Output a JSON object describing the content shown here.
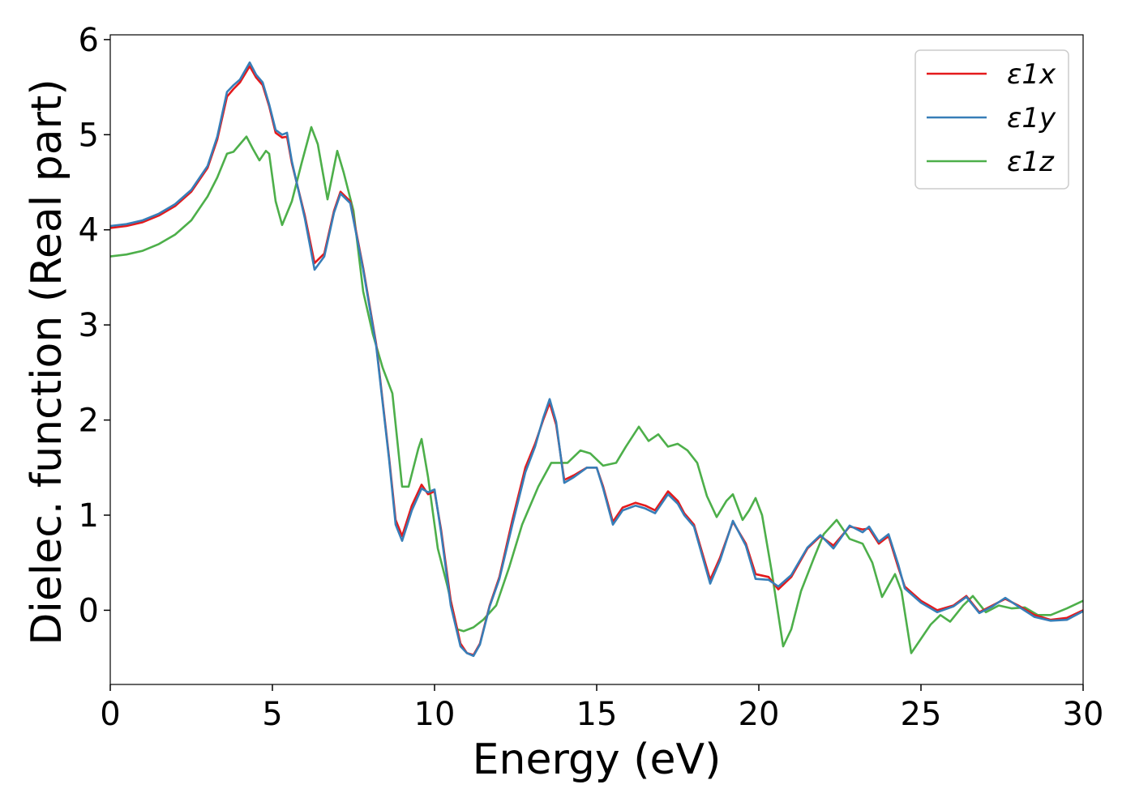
{
  "chart_data": {
    "type": "line",
    "xlabel": "Energy (eV)",
    "ylabel": "Dielec. function (Real part)",
    "xlim": [
      0,
      30
    ],
    "ylim": [
      -0.78,
      6.05
    ],
    "xticks": [
      0,
      5,
      10,
      15,
      20,
      25,
      30
    ],
    "yticks": [
      0,
      1,
      2,
      3,
      4,
      5,
      6
    ],
    "grid": false,
    "legend_position": "top-right",
    "series": [
      {
        "name": "ε1x",
        "color": "#e41a1c",
        "points": [
          [
            0,
            4.02
          ],
          [
            0.5,
            4.04
          ],
          [
            1,
            4.08
          ],
          [
            1.5,
            4.15
          ],
          [
            2,
            4.25
          ],
          [
            2.5,
            4.4
          ],
          [
            3,
            4.65
          ],
          [
            3.3,
            4.95
          ],
          [
            3.6,
            5.4
          ],
          [
            3.8,
            5.48
          ],
          [
            4.0,
            5.55
          ],
          [
            4.3,
            5.72
          ],
          [
            4.5,
            5.6
          ],
          [
            4.7,
            5.52
          ],
          [
            4.9,
            5.3
          ],
          [
            5.1,
            5.02
          ],
          [
            5.3,
            4.97
          ],
          [
            5.45,
            4.98
          ],
          [
            5.6,
            4.7
          ],
          [
            6.0,
            4.15
          ],
          [
            6.3,
            3.65
          ],
          [
            6.6,
            3.75
          ],
          [
            6.9,
            4.2
          ],
          [
            7.1,
            4.4
          ],
          [
            7.4,
            4.3
          ],
          [
            7.8,
            3.6
          ],
          [
            8.2,
            2.8
          ],
          [
            8.6,
            1.6
          ],
          [
            8.8,
            0.95
          ],
          [
            9.0,
            0.78
          ],
          [
            9.3,
            1.1
          ],
          [
            9.6,
            1.32
          ],
          [
            9.8,
            1.22
          ],
          [
            10.0,
            1.25
          ],
          [
            10.2,
            0.85
          ],
          [
            10.5,
            0.1
          ],
          [
            10.8,
            -0.35
          ],
          [
            11.0,
            -0.45
          ],
          [
            11.2,
            -0.47
          ],
          [
            11.4,
            -0.35
          ],
          [
            11.7,
            0.05
          ],
          [
            12.0,
            0.35
          ],
          [
            12.4,
            0.95
          ],
          [
            12.8,
            1.5
          ],
          [
            13.1,
            1.75
          ],
          [
            13.35,
            2.0
          ],
          [
            13.55,
            2.18
          ],
          [
            13.75,
            1.95
          ],
          [
            14.0,
            1.37
          ],
          [
            14.3,
            1.42
          ],
          [
            14.7,
            1.5
          ],
          [
            15.0,
            1.5
          ],
          [
            15.2,
            1.3
          ],
          [
            15.5,
            0.93
          ],
          [
            15.8,
            1.08
          ],
          [
            16.2,
            1.13
          ],
          [
            16.5,
            1.1
          ],
          [
            16.8,
            1.05
          ],
          [
            17.2,
            1.25
          ],
          [
            17.5,
            1.15
          ],
          [
            17.7,
            1.02
          ],
          [
            18.0,
            0.9
          ],
          [
            18.5,
            0.32
          ],
          [
            18.8,
            0.55
          ],
          [
            19.2,
            0.93
          ],
          [
            19.6,
            0.7
          ],
          [
            19.9,
            0.38
          ],
          [
            20.3,
            0.35
          ],
          [
            20.6,
            0.22
          ],
          [
            21.0,
            0.35
          ],
          [
            21.5,
            0.65
          ],
          [
            21.9,
            0.78
          ],
          [
            22.3,
            0.68
          ],
          [
            22.8,
            0.88
          ],
          [
            23.2,
            0.85
          ],
          [
            23.4,
            0.86
          ],
          [
            23.7,
            0.7
          ],
          [
            24.0,
            0.78
          ],
          [
            24.3,
            0.45
          ],
          [
            24.5,
            0.25
          ],
          [
            25.0,
            0.1
          ],
          [
            25.5,
            0.0
          ],
          [
            26.0,
            0.05
          ],
          [
            26.4,
            0.15
          ],
          [
            26.8,
            -0.02
          ],
          [
            27.2,
            0.05
          ],
          [
            27.6,
            0.12
          ],
          [
            28.0,
            0.05
          ],
          [
            28.5,
            -0.05
          ],
          [
            29.0,
            -0.1
          ],
          [
            29.5,
            -0.08
          ],
          [
            30.0,
            0.0
          ]
        ]
      },
      {
        "name": "ε1y",
        "color": "#377eb8",
        "points": [
          [
            0,
            4.04
          ],
          [
            0.5,
            4.06
          ],
          [
            1,
            4.1
          ],
          [
            1.5,
            4.17
          ],
          [
            2,
            4.27
          ],
          [
            2.5,
            4.42
          ],
          [
            3,
            4.67
          ],
          [
            3.3,
            4.98
          ],
          [
            3.6,
            5.45
          ],
          [
            3.8,
            5.52
          ],
          [
            4.0,
            5.58
          ],
          [
            4.3,
            5.76
          ],
          [
            4.5,
            5.63
          ],
          [
            4.7,
            5.55
          ],
          [
            4.9,
            5.32
          ],
          [
            5.1,
            5.05
          ],
          [
            5.3,
            5.0
          ],
          [
            5.45,
            5.02
          ],
          [
            5.6,
            4.72
          ],
          [
            6.0,
            4.12
          ],
          [
            6.3,
            3.58
          ],
          [
            6.6,
            3.72
          ],
          [
            6.9,
            4.18
          ],
          [
            7.1,
            4.38
          ],
          [
            7.4,
            4.28
          ],
          [
            7.8,
            3.58
          ],
          [
            8.2,
            2.78
          ],
          [
            8.6,
            1.58
          ],
          [
            8.8,
            0.9
          ],
          [
            9.0,
            0.73
          ],
          [
            9.3,
            1.05
          ],
          [
            9.6,
            1.28
          ],
          [
            9.8,
            1.24
          ],
          [
            10.0,
            1.27
          ],
          [
            10.2,
            0.82
          ],
          [
            10.5,
            0.05
          ],
          [
            10.8,
            -0.38
          ],
          [
            11.0,
            -0.45
          ],
          [
            11.2,
            -0.48
          ],
          [
            11.4,
            -0.36
          ],
          [
            11.7,
            0.04
          ],
          [
            12.0,
            0.33
          ],
          [
            12.4,
            0.9
          ],
          [
            12.8,
            1.45
          ],
          [
            13.1,
            1.72
          ],
          [
            13.35,
            2.02
          ],
          [
            13.55,
            2.22
          ],
          [
            13.75,
            1.98
          ],
          [
            14.0,
            1.34
          ],
          [
            14.3,
            1.4
          ],
          [
            14.7,
            1.5
          ],
          [
            15.0,
            1.5
          ],
          [
            15.2,
            1.28
          ],
          [
            15.5,
            0.9
          ],
          [
            15.8,
            1.05
          ],
          [
            16.2,
            1.1
          ],
          [
            16.5,
            1.07
          ],
          [
            16.8,
            1.02
          ],
          [
            17.2,
            1.22
          ],
          [
            17.5,
            1.12
          ],
          [
            17.7,
            1.0
          ],
          [
            18.0,
            0.88
          ],
          [
            18.5,
            0.28
          ],
          [
            18.8,
            0.52
          ],
          [
            19.2,
            0.94
          ],
          [
            19.6,
            0.68
          ],
          [
            19.9,
            0.33
          ],
          [
            20.3,
            0.32
          ],
          [
            20.6,
            0.25
          ],
          [
            21.0,
            0.37
          ],
          [
            21.5,
            0.66
          ],
          [
            21.9,
            0.79
          ],
          [
            22.3,
            0.65
          ],
          [
            22.8,
            0.89
          ],
          [
            23.2,
            0.82
          ],
          [
            23.4,
            0.88
          ],
          [
            23.7,
            0.72
          ],
          [
            24.0,
            0.8
          ],
          [
            24.3,
            0.48
          ],
          [
            24.5,
            0.23
          ],
          [
            25.0,
            0.08
          ],
          [
            25.5,
            -0.02
          ],
          [
            26.0,
            0.04
          ],
          [
            26.4,
            0.14
          ],
          [
            26.8,
            -0.03
          ],
          [
            27.2,
            0.04
          ],
          [
            27.6,
            0.13
          ],
          [
            28.0,
            0.04
          ],
          [
            28.5,
            -0.07
          ],
          [
            29.0,
            -0.11
          ],
          [
            29.5,
            -0.1
          ],
          [
            30.0,
            -0.01
          ]
        ]
      },
      {
        "name": "ε1z",
        "color": "#4daf4a",
        "points": [
          [
            0,
            3.72
          ],
          [
            0.5,
            3.74
          ],
          [
            1,
            3.78
          ],
          [
            1.5,
            3.85
          ],
          [
            2,
            3.95
          ],
          [
            2.5,
            4.1
          ],
          [
            3,
            4.35
          ],
          [
            3.3,
            4.55
          ],
          [
            3.6,
            4.8
          ],
          [
            3.8,
            4.82
          ],
          [
            4.0,
            4.9
          ],
          [
            4.2,
            4.98
          ],
          [
            4.4,
            4.85
          ],
          [
            4.6,
            4.73
          ],
          [
            4.8,
            4.83
          ],
          [
            4.9,
            4.8
          ],
          [
            5.1,
            4.3
          ],
          [
            5.3,
            4.05
          ],
          [
            5.6,
            4.3
          ],
          [
            5.9,
            4.7
          ],
          [
            6.2,
            5.08
          ],
          [
            6.4,
            4.9
          ],
          [
            6.7,
            4.32
          ],
          [
            7.0,
            4.83
          ],
          [
            7.2,
            4.6
          ],
          [
            7.5,
            4.2
          ],
          [
            7.8,
            3.35
          ],
          [
            8.1,
            2.9
          ],
          [
            8.4,
            2.55
          ],
          [
            8.7,
            2.28
          ],
          [
            9.0,
            1.3
          ],
          [
            9.2,
            1.3
          ],
          [
            9.5,
            1.7
          ],
          [
            9.6,
            1.8
          ],
          [
            9.8,
            1.4
          ],
          [
            10.1,
            0.65
          ],
          [
            10.4,
            0.25
          ],
          [
            10.7,
            -0.2
          ],
          [
            10.9,
            -0.22
          ],
          [
            11.2,
            -0.18
          ],
          [
            11.5,
            -0.1
          ],
          [
            11.9,
            0.05
          ],
          [
            12.3,
            0.45
          ],
          [
            12.7,
            0.9
          ],
          [
            13.2,
            1.3
          ],
          [
            13.6,
            1.55
          ],
          [
            14.1,
            1.55
          ],
          [
            14.5,
            1.68
          ],
          [
            14.8,
            1.65
          ],
          [
            15.2,
            1.52
          ],
          [
            15.6,
            1.55
          ],
          [
            15.9,
            1.72
          ],
          [
            16.3,
            1.93
          ],
          [
            16.6,
            1.78
          ],
          [
            16.9,
            1.85
          ],
          [
            17.2,
            1.72
          ],
          [
            17.5,
            1.75
          ],
          [
            17.8,
            1.68
          ],
          [
            18.1,
            1.55
          ],
          [
            18.4,
            1.2
          ],
          [
            18.7,
            0.98
          ],
          [
            19.0,
            1.15
          ],
          [
            19.2,
            1.22
          ],
          [
            19.5,
            0.95
          ],
          [
            19.7,
            1.05
          ],
          [
            19.9,
            1.18
          ],
          [
            20.1,
            1.0
          ],
          [
            20.4,
            0.4
          ],
          [
            20.75,
            -0.38
          ],
          [
            21.0,
            -0.2
          ],
          [
            21.3,
            0.2
          ],
          [
            21.7,
            0.55
          ],
          [
            22.0,
            0.8
          ],
          [
            22.4,
            0.95
          ],
          [
            22.8,
            0.75
          ],
          [
            23.2,
            0.7
          ],
          [
            23.5,
            0.5
          ],
          [
            23.8,
            0.14
          ],
          [
            24.2,
            0.38
          ],
          [
            24.4,
            0.2
          ],
          [
            24.7,
            -0.45
          ],
          [
            25.0,
            -0.3
          ],
          [
            25.3,
            -0.15
          ],
          [
            25.6,
            -0.05
          ],
          [
            25.9,
            -0.12
          ],
          [
            26.3,
            0.05
          ],
          [
            26.6,
            0.15
          ],
          [
            27.0,
            -0.02
          ],
          [
            27.4,
            0.05
          ],
          [
            27.8,
            0.02
          ],
          [
            28.2,
            0.03
          ],
          [
            28.6,
            -0.05
          ],
          [
            29.0,
            -0.05
          ],
          [
            29.5,
            0.02
          ],
          [
            30.0,
            0.1
          ]
        ]
      }
    ]
  }
}
